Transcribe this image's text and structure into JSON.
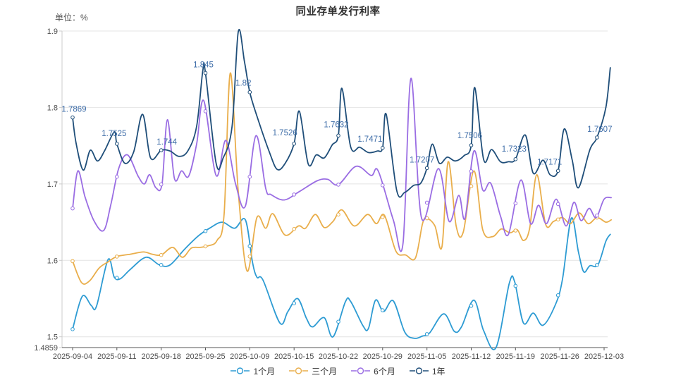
{
  "chart": {
    "title": "同业存单发行利率",
    "unit_label": "单位：%"
  },
  "chart_data": {
    "type": "line",
    "title": "同业存单发行利率",
    "ylabel": "单位：%",
    "x_tick_labels": [
      "2025-09-04",
      "2025-09-11",
      "2025-09-18",
      "2025-09-25",
      "2025-10-09",
      "2025-10-15",
      "2025-10-22",
      "2025-10-29",
      "2025-11-05",
      "2025-11-12",
      "2025-11-19",
      "2025-11-26",
      "2025-12-03"
    ],
    "x_note": "daily data; day index 0-60 spans 2025-09-04 to 2025-12-03, ticks every 5 trading days",
    "y_ticks": [
      1.9,
      1.8,
      1.7,
      1.6,
      1.5,
      1.4859
    ],
    "ylim": [
      1.4859,
      1.9
    ],
    "grid": "horizontal",
    "legend_position": "bottom",
    "colors": {
      "grid": "#e4e4e4",
      "axis_left": "#cccccc",
      "axis_bottom": "#555555",
      "tick_text": "#4d4d4d",
      "point_label_text": "#3e6da8"
    },
    "marker_days": [
      0,
      5,
      10,
      15,
      20,
      25,
      30,
      35,
      40,
      45,
      50,
      54.8,
      59.2
    ],
    "series": [
      {
        "key": "1m",
        "name": "1个月",
        "color": "#2d9bd3",
        "points": [
          [
            0,
            1.51
          ],
          [
            1.1,
            1.553
          ],
          [
            2.1,
            1.541
          ],
          [
            2.7,
            1.54
          ],
          [
            4,
            1.601
          ],
          [
            4.7,
            1.578
          ],
          [
            5.4,
            1.576
          ],
          [
            6.5,
            1.588
          ],
          [
            8.3,
            1.604
          ],
          [
            9.8,
            1.594
          ],
          [
            11,
            1.594
          ],
          [
            12.6,
            1.614
          ],
          [
            14.2,
            1.632
          ],
          [
            15.6,
            1.643
          ],
          [
            16.9,
            1.65
          ],
          [
            18.3,
            1.642
          ],
          [
            19.5,
            1.653
          ],
          [
            20.3,
            1.598
          ],
          [
            20.8,
            1.578
          ],
          [
            21.5,
            1.574
          ],
          [
            23.4,
            1.518
          ],
          [
            24.3,
            1.533
          ],
          [
            25.4,
            1.55
          ],
          [
            26.4,
            1.524
          ],
          [
            27.1,
            1.513
          ],
          [
            28.4,
            1.525
          ],
          [
            29.4,
            1.5
          ],
          [
            30.8,
            1.546
          ],
          [
            31.4,
            1.546
          ],
          [
            32.8,
            1.514
          ],
          [
            33.4,
            1.511
          ],
          [
            34.2,
            1.548
          ],
          [
            35.1,
            1.533
          ],
          [
            36.2,
            1.547
          ],
          [
            37.5,
            1.506
          ],
          [
            38.6,
            1.498
          ],
          [
            39.5,
            1.501
          ],
          [
            40.3,
            1.505
          ],
          [
            41.9,
            1.53
          ],
          [
            43.1,
            1.507
          ],
          [
            43.9,
            1.513
          ],
          [
            45.3,
            1.548
          ],
          [
            46.4,
            1.508
          ],
          [
            47.8,
            1.486
          ],
          [
            49.3,
            1.57
          ],
          [
            49.9,
            1.572
          ],
          [
            50.9,
            1.518
          ],
          [
            52,
            1.531
          ],
          [
            53.1,
            1.515
          ],
          [
            54.5,
            1.542
          ],
          [
            55.3,
            1.575
          ],
          [
            56.3,
            1.655
          ],
          [
            57.1,
            1.611
          ],
          [
            57.7,
            1.585
          ],
          [
            58.4,
            1.593
          ],
          [
            59.3,
            1.594
          ],
          [
            60.2,
            1.625
          ],
          [
            60.7,
            1.634
          ]
        ]
      },
      {
        "key": "3m",
        "name": "三个月",
        "color": "#e9ae4b",
        "points": [
          [
            0,
            1.599
          ],
          [
            1,
            1.571
          ],
          [
            1.9,
            1.573
          ],
          [
            3,
            1.59
          ],
          [
            4,
            1.598
          ],
          [
            5,
            1.605
          ],
          [
            6.5,
            1.608
          ],
          [
            8,
            1.611
          ],
          [
            9,
            1.608
          ],
          [
            10,
            1.607
          ],
          [
            11.3,
            1.617
          ],
          [
            12.4,
            1.604
          ],
          [
            13.4,
            1.616
          ],
          [
            14.4,
            1.617
          ],
          [
            15.3,
            1.619
          ],
          [
            16.3,
            1.626
          ],
          [
            17.1,
            1.66
          ],
          [
            17.8,
            1.845
          ],
          [
            18.7,
            1.69
          ],
          [
            19.7,
            1.586
          ],
          [
            20.8,
            1.656
          ],
          [
            21.8,
            1.642
          ],
          [
            22.6,
            1.661
          ],
          [
            24,
            1.633
          ],
          [
            25.5,
            1.645
          ],
          [
            26.3,
            1.642
          ],
          [
            27.4,
            1.66
          ],
          [
            28.4,
            1.643
          ],
          [
            29.4,
            1.651
          ],
          [
            30.4,
            1.666
          ],
          [
            31.8,
            1.645
          ],
          [
            33.3,
            1.66
          ],
          [
            34.3,
            1.648
          ],
          [
            35.2,
            1.659
          ],
          [
            36.5,
            1.612
          ],
          [
            37.6,
            1.607
          ],
          [
            38.7,
            1.603
          ],
          [
            39.5,
            1.648
          ],
          [
            40,
            1.655
          ],
          [
            40.9,
            1.645
          ],
          [
            41.7,
            1.618
          ],
          [
            42.4,
            1.729
          ],
          [
            43.3,
            1.645
          ],
          [
            44.1,
            1.637
          ],
          [
            45.3,
            1.717
          ],
          [
            46.3,
            1.64
          ],
          [
            47.4,
            1.631
          ],
          [
            48.4,
            1.641
          ],
          [
            49.4,
            1.636
          ],
          [
            50.2,
            1.64
          ],
          [
            50.9,
            1.626
          ],
          [
            51.6,
            1.642
          ],
          [
            52.4,
            1.712
          ],
          [
            53.4,
            1.647
          ],
          [
            54.3,
            1.651
          ],
          [
            55.3,
            1.656
          ],
          [
            56.2,
            1.648
          ],
          [
            57.2,
            1.662
          ],
          [
            58.2,
            1.648
          ],
          [
            59.2,
            1.656
          ],
          [
            60.2,
            1.65
          ],
          [
            60.8,
            1.653
          ]
        ]
      },
      {
        "key": "6m",
        "name": "6个月",
        "color": "#9a6de3",
        "points": [
          [
            0,
            1.668
          ],
          [
            0.6,
            1.717
          ],
          [
            1.4,
            1.683
          ],
          [
            2.4,
            1.652
          ],
          [
            3.5,
            1.639
          ],
          [
            4.3,
            1.672
          ],
          [
            5.2,
            1.72
          ],
          [
            6.2,
            1.738
          ],
          [
            7.4,
            1.71
          ],
          [
            8.1,
            1.7
          ],
          [
            8.7,
            1.712
          ],
          [
            9.4,
            1.695
          ],
          [
            10.1,
            1.7
          ],
          [
            10.7,
            1.784
          ],
          [
            11.5,
            1.707
          ],
          [
            12.3,
            1.717
          ],
          [
            13.1,
            1.71
          ],
          [
            14,
            1.752
          ],
          [
            14.8,
            1.809
          ],
          [
            16.2,
            1.711
          ],
          [
            17.3,
            1.757
          ],
          [
            18.4,
            1.7
          ],
          [
            19.5,
            1.671
          ],
          [
            20.7,
            1.763
          ],
          [
            21.8,
            1.694
          ],
          [
            22.4,
            1.686
          ],
          [
            23.9,
            1.679
          ],
          [
            25.6,
            1.69
          ],
          [
            27.6,
            1.704
          ],
          [
            28.8,
            1.706
          ],
          [
            30,
            1.699
          ],
          [
            32,
            1.723
          ],
          [
            33.7,
            1.711
          ],
          [
            34.5,
            1.717
          ],
          [
            36.2,
            1.653
          ],
          [
            37.3,
            1.622
          ],
          [
            38.2,
            1.838
          ],
          [
            39.4,
            1.655
          ],
          [
            41.3,
            1.72
          ],
          [
            42.5,
            1.651
          ],
          [
            43.6,
            1.685
          ],
          [
            44.3,
            1.655
          ],
          [
            45.3,
            1.743
          ],
          [
            46.3,
            1.692
          ],
          [
            47.2,
            1.701
          ],
          [
            48.3,
            1.658
          ],
          [
            49.2,
            1.634
          ],
          [
            50.6,
            1.705
          ],
          [
            51.7,
            1.648
          ],
          [
            52.6,
            1.672
          ],
          [
            53.5,
            1.648
          ],
          [
            54.6,
            1.68
          ],
          [
            55.7,
            1.645
          ],
          [
            56.6,
            1.676
          ],
          [
            57.4,
            1.652
          ],
          [
            58.3,
            1.668
          ],
          [
            59.1,
            1.656
          ],
          [
            60,
            1.68
          ],
          [
            60.8,
            1.682
          ]
        ]
      },
      {
        "key": "1y",
        "name": "1年",
        "color": "#1f4e79",
        "points": [
          [
            0,
            1.7869
          ],
          [
            0.4,
            1.753
          ],
          [
            1.2,
            1.718
          ],
          [
            2,
            1.744
          ],
          [
            2.8,
            1.73
          ],
          [
            3.6,
            1.743
          ],
          [
            4.7,
            1.768
          ],
          [
            5,
            1.7525
          ],
          [
            5.9,
            1.727
          ],
          [
            6.9,
            1.742
          ],
          [
            7.9,
            1.791
          ],
          [
            8.8,
            1.734
          ],
          [
            10,
            1.744
          ],
          [
            11,
            1.743
          ],
          [
            12,
            1.736
          ],
          [
            13,
            1.743
          ],
          [
            14,
            1.775
          ],
          [
            14.7,
            1.848
          ],
          [
            15,
            1.845
          ],
          [
            16.2,
            1.727
          ],
          [
            17,
            1.734
          ],
          [
            18,
            1.775
          ],
          [
            18.7,
            1.899
          ],
          [
            19.4,
            1.86
          ],
          [
            20,
            1.82
          ],
          [
            20.8,
            1.789
          ],
          [
            22.2,
            1.742
          ],
          [
            23.1,
            1.719
          ],
          [
            24,
            1.727
          ],
          [
            25,
            1.7526
          ],
          [
            25.6,
            1.795
          ],
          [
            26.6,
            1.726
          ],
          [
            27.5,
            1.738
          ],
          [
            28.4,
            1.734
          ],
          [
            29.3,
            1.751
          ],
          [
            30,
            1.7632
          ],
          [
            30.4,
            1.825
          ],
          [
            31.4,
            1.748
          ],
          [
            32.4,
            1.748
          ],
          [
            33.4,
            1.741
          ],
          [
            34.4,
            1.743
          ],
          [
            35,
            1.7471
          ],
          [
            35.4,
            1.791
          ],
          [
            36.6,
            1.691
          ],
          [
            37.5,
            1.689
          ],
          [
            38.5,
            1.698
          ],
          [
            39.3,
            1.701
          ],
          [
            40,
            1.7207
          ],
          [
            40.6,
            1.752
          ],
          [
            41.4,
            1.727
          ],
          [
            42.3,
            1.735
          ],
          [
            43.2,
            1.73
          ],
          [
            44.2,
            1.737
          ],
          [
            45,
            1.7506
          ],
          [
            45.4,
            1.826
          ],
          [
            46.4,
            1.732
          ],
          [
            47.3,
            1.745
          ],
          [
            48.3,
            1.729
          ],
          [
            49.2,
            1.729
          ],
          [
            50,
            1.7323
          ],
          [
            51.1,
            1.764
          ],
          [
            52,
            1.714
          ],
          [
            53.1,
            1.731
          ],
          [
            53.9,
            1.712
          ],
          [
            54.8,
            1.7171
          ],
          [
            55.5,
            1.772
          ],
          [
            56.4,
            1.731
          ],
          [
            57.1,
            1.695
          ],
          [
            58.4,
            1.745
          ],
          [
            59.2,
            1.7607
          ],
          [
            60.2,
            1.8
          ],
          [
            60.7,
            1.852
          ]
        ],
        "point_labels": [
          {
            "day": 0,
            "text": "1.7869",
            "dx": 2,
            "dy": -8
          },
          {
            "day": 5,
            "text": "1.7525",
            "dx": -4,
            "dy": -11
          },
          {
            "day": 10,
            "text": "1.744",
            "dx": 8,
            "dy": -8
          },
          {
            "day": 15,
            "text": "1.845",
            "dx": -3,
            "dy": -8
          },
          {
            "day": 20,
            "text": "1.82",
            "dx": -9,
            "dy": -9
          },
          {
            "day": 25,
            "text": "1.7526",
            "dx": -13,
            "dy": -12
          },
          {
            "day": 30,
            "text": "1.7632",
            "dx": -3,
            "dy": -12
          },
          {
            "day": 35,
            "text": "1.7471",
            "dx": -18,
            "dy": -9
          },
          {
            "day": 40,
            "text": "1.7207",
            "dx": -7,
            "dy": -8
          },
          {
            "day": 45,
            "text": "1.7506",
            "dx": -2,
            "dy": -10
          },
          {
            "day": 50,
            "text": "1.7323",
            "dx": -2,
            "dy": -11
          },
          {
            "day": 54.8,
            "text": "1.7171",
            "dx": -12,
            "dy": -9
          },
          {
            "day": 59.2,
            "text": "1.7607",
            "dx": 4,
            "dy": -8
          }
        ]
      }
    ]
  }
}
